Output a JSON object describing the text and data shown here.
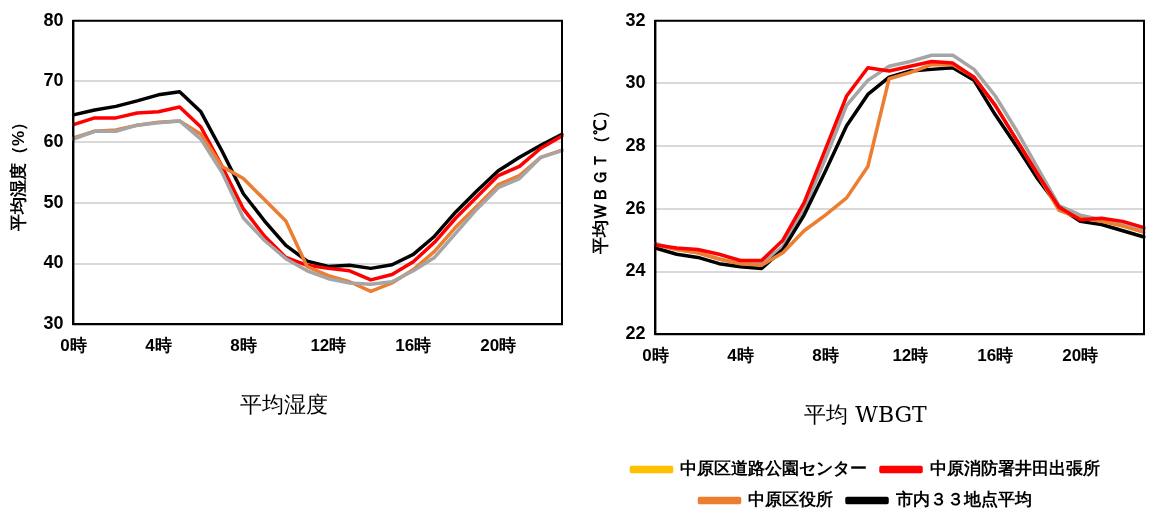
{
  "chart_data": [
    {
      "type": "line",
      "title": "平均湿度",
      "ylabel": "平均湿度（%）",
      "categories": [
        "0時",
        null,
        null,
        null,
        "4時",
        null,
        null,
        null,
        "8時",
        null,
        null,
        null,
        "12時",
        null,
        null,
        null,
        "16時",
        null,
        null,
        null,
        "20時",
        null,
        null,
        null
      ],
      "ylim": [
        30,
        80
      ],
      "yticks": [
        30,
        40,
        50,
        60,
        70,
        80
      ],
      "grid": "y",
      "legend": false,
      "marker": "none",
      "series": [
        {
          "color": "#a5a5a5",
          "values": [
            60.5,
            61.8,
            61.8,
            62.8,
            63.2,
            63.5,
            60.5,
            55,
            47.5,
            43.8,
            40.8,
            38.8,
            37.5,
            36.8,
            36.6,
            37,
            38.8,
            41,
            45,
            49,
            52.5,
            54,
            57.5,
            58.6
          ]
        },
        {
          "color": "#ed7d31",
          "values": [
            60.7,
            61.8,
            62,
            62.8,
            63.3,
            63.5,
            61.3,
            56,
            54,
            50.5,
            47,
            39.5,
            38,
            37,
            35.4,
            36.8,
            39,
            42,
            46,
            49.5,
            53,
            54.5,
            57.5,
            58.7
          ]
        },
        {
          "color": "#ff0000",
          "values": [
            62.9,
            64,
            64,
            64.8,
            65,
            65.8,
            62.5,
            56,
            49,
            44.5,
            41,
            39.7,
            39.2,
            38.8,
            37.3,
            38.2,
            40.3,
            43.5,
            47.5,
            51,
            54.5,
            56,
            59,
            61
          ]
        },
        {
          "color": "#000000",
          "values": [
            64.5,
            65.3,
            65.9,
            66.8,
            67.8,
            68.3,
            65,
            58.5,
            51.5,
            47,
            43,
            40.4,
            39.5,
            39.7,
            39.2,
            39.8,
            41.5,
            44.5,
            48.5,
            52,
            55.3,
            57.5,
            59.5,
            61.3
          ]
        }
      ]
    },
    {
      "type": "line",
      "title": "平均 WBGT",
      "ylabel": "平均ＷＢＧＴ（℃）",
      "categories": [
        "0時",
        null,
        null,
        null,
        "4時",
        null,
        null,
        null,
        "8時",
        null,
        null,
        null,
        "12時",
        null,
        null,
        null,
        "16時",
        null,
        null,
        null,
        "20時",
        null,
        null,
        null
      ],
      "ylim": [
        22,
        32
      ],
      "yticks": [
        22,
        24,
        26,
        28,
        30,
        32
      ],
      "grid": "y",
      "legend": "bottom",
      "marker": "none",
      "series": [
        {
          "name": "中原区道路公園センター",
          "color": "#ffc000",
          "values": [
            null,
            null,
            null,
            null,
            null,
            null,
            null,
            null,
            null,
            null,
            null,
            null,
            null,
            null,
            null,
            null,
            null,
            null,
            null,
            null,
            null,
            null,
            null,
            null
          ]
        },
        {
          "name": "中原消防署井田出張所",
          "color": "#ff0000",
          "values": [
            24.85,
            24.75,
            24.7,
            24.55,
            24.35,
            24.35,
            25,
            26.2,
            27.9,
            29.6,
            30.5,
            30.4,
            30.55,
            30.7,
            30.65,
            30.2,
            29.3,
            28.2,
            27.1,
            26.05,
            25.65,
            25.7,
            25.6,
            25.4
          ]
        },
        {
          "name": "中原区役所",
          "color": "#ed7d31",
          "values": [
            24.85,
            24.7,
            24.6,
            24.4,
            24.25,
            24.2,
            24.6,
            25.3,
            25.8,
            26.35,
            27.35,
            30.15,
            30.35,
            30.6,
            30.6,
            30.2,
            29.3,
            28.2,
            27.1,
            25.95,
            25.7,
            25.6,
            25.45,
            25.25
          ]
        },
        {
          "name": "市内３３地点平均",
          "color": "#000000",
          "values": [
            24.75,
            24.55,
            24.45,
            24.25,
            24.15,
            24.1,
            24.7,
            25.8,
            27.2,
            28.65,
            29.65,
            30.2,
            30.4,
            30.45,
            30.5,
            30.1,
            29,
            28,
            26.95,
            26.05,
            25.6,
            25.5,
            25.3,
            25.1
          ]
        },
        {
          "color": "#a5a5a5",
          "values": [
            24.9,
            24.7,
            24.6,
            24.4,
            24.25,
            24.25,
            24.8,
            26,
            27.6,
            29.3,
            30.1,
            30.55,
            30.7,
            30.9,
            30.9,
            30.45,
            29.6,
            28.5,
            27.3,
            26.1,
            25.8,
            25.65,
            25.5,
            25.35
          ]
        }
      ]
    }
  ]
}
